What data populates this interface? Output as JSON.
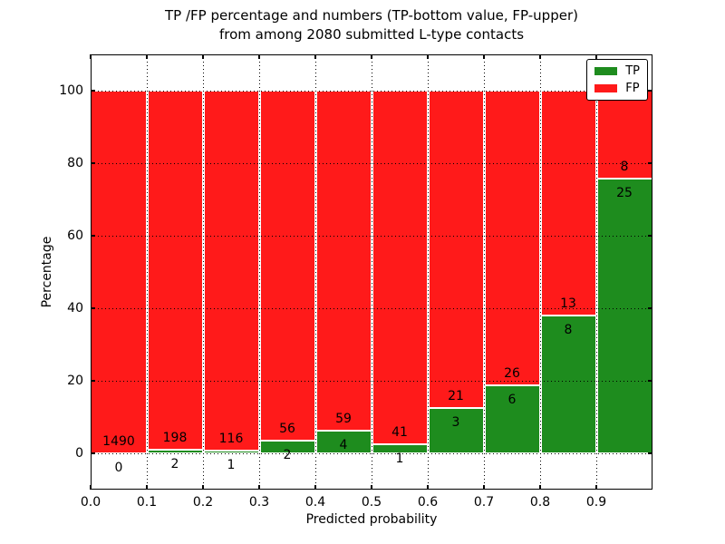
{
  "title": {
    "line1": "TP /FP percentage and numbers (TP-bottom value, FP-upper)",
    "line2": "from among 2080 submitted L-type contacts"
  },
  "chart_data": {
    "type": "bar",
    "stacked": true,
    "orientation": "vertical",
    "title": "TP /FP percentage and numbers (TP-bottom value, FP-upper) from among 2080 submitted L-type contacts",
    "xlabel": "Predicted probability",
    "ylabel": "Percentage",
    "xlim": [
      0.0,
      1.0
    ],
    "ylim": [
      -10,
      110
    ],
    "x_tick_labels": [
      "0.0",
      "0.1",
      "0.2",
      "0.3",
      "0.4",
      "0.5",
      "0.6",
      "0.7",
      "0.8",
      "0.9"
    ],
    "y_ticks": [
      0,
      20,
      40,
      60,
      80,
      100
    ],
    "grid": "dotted",
    "legend_position": "upper right",
    "total_contacts": 2080,
    "bin_width": 0.1,
    "annotation_rule": "FP count shown above TP/FP boundary, TP count shown below it",
    "bins": [
      {
        "range": "0.0-0.1",
        "tp": 0,
        "fp": 1490,
        "tp_pct": 0.0,
        "fp_pct": 100.0
      },
      {
        "range": "0.1-0.2",
        "tp": 2,
        "fp": 198,
        "tp_pct": 1.0,
        "fp_pct": 99.0
      },
      {
        "range": "0.2-0.3",
        "tp": 1,
        "fp": 116,
        "tp_pct": 0.85,
        "fp_pct": 99.15
      },
      {
        "range": "0.3-0.4",
        "tp": 2,
        "fp": 56,
        "tp_pct": 3.45,
        "fp_pct": 96.55
      },
      {
        "range": "0.4-0.5",
        "tp": 4,
        "fp": 59,
        "tp_pct": 6.35,
        "fp_pct": 93.65
      },
      {
        "range": "0.5-0.6",
        "tp": 1,
        "fp": 41,
        "tp_pct": 2.38,
        "fp_pct": 97.62
      },
      {
        "range": "0.6-0.7",
        "tp": 3,
        "fp": 21,
        "tp_pct": 12.5,
        "fp_pct": 87.5
      },
      {
        "range": "0.7-0.8",
        "tp": 6,
        "fp": 26,
        "tp_pct": 18.75,
        "fp_pct": 81.25
      },
      {
        "range": "0.8-0.9",
        "tp": 8,
        "fp": 13,
        "tp_pct": 38.1,
        "fp_pct": 61.9
      },
      {
        "range": "0.9-1.0",
        "tp": 25,
        "fp": 8,
        "tp_pct": 75.76,
        "fp_pct": 24.24
      }
    ],
    "series": [
      {
        "name": "TP",
        "color": "#1e8c1e"
      },
      {
        "name": "FP",
        "color": "#ff1a1a"
      }
    ]
  },
  "colors": {
    "tp": "#1e8c1e",
    "fp": "#ff1a1a",
    "grid": "#000000",
    "text": "#000000",
    "background": "#ffffff"
  }
}
